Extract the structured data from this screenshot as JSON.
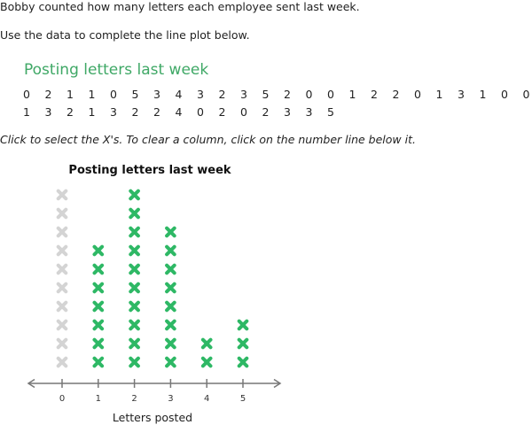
{
  "instructions": {
    "line1": "Bobby counted how many letters each employee sent last week.",
    "line2": "Use the data to complete the line plot below.",
    "line3": "Click to select the X's. To clear a column, click on the number line below it."
  },
  "data_table": {
    "title": "Posting letters last week",
    "row1": [
      "0",
      "2",
      "1",
      "1",
      "0",
      "5",
      "3",
      "4",
      "3",
      "2",
      "3",
      "5",
      "2",
      "0",
      "0",
      "1",
      "2",
      "2",
      "0",
      "1",
      "3",
      "1",
      "0",
      "0"
    ],
    "row2": [
      "1",
      "3",
      "2",
      "1",
      "3",
      "2",
      "2",
      "4",
      "0",
      "2",
      "0",
      "2",
      "3",
      "3",
      "5"
    ]
  },
  "chart_data": {
    "type": "scatter",
    "title": "Posting letters last week",
    "xlabel": "Letters posted",
    "ylabel": "",
    "categories": [
      "0",
      "1",
      "2",
      "3",
      "4",
      "5"
    ],
    "selected_counts": [
      0,
      7,
      10,
      8,
      2,
      3
    ],
    "slots_per_column": 10,
    "colors": {
      "selected": "#2eb865",
      "unselected": "#d4d4d4",
      "axis": "#777777"
    },
    "icon": "x-mark-icon"
  }
}
